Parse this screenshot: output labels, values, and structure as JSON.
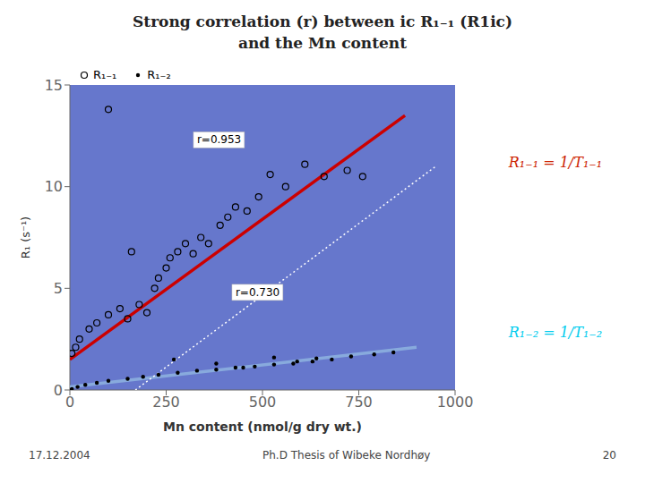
{
  "chart_data": {
    "type": "scatter",
    "title": "Strong correlation (r) between ic R₁₋₁ (R1ic)",
    "subtitle": "and the Mn content",
    "xlabel": "Mn content (nmol/g dry wt.)",
    "ylabel": "R₁ (s⁻¹)",
    "series": [
      {
        "name": "R₁₋₁",
        "type": "scatter",
        "color": "#000000",
        "marker": "open_circle",
        "x": [
          5,
          15,
          25,
          50,
          70,
          100,
          130,
          150,
          160,
          180,
          200,
          220,
          230,
          250,
          260,
          280,
          300,
          320,
          340,
          360,
          390,
          410,
          430,
          460,
          490,
          520,
          560,
          610,
          660,
          720,
          760,
          100
        ],
        "values": [
          1.8,
          2.1,
          2.5,
          3.0,
          3.3,
          3.7,
          4.0,
          3.5,
          6.8,
          4.2,
          3.8,
          5.0,
          5.5,
          6.0,
          6.5,
          6.8,
          7.2,
          6.7,
          7.5,
          7.2,
          8.1,
          8.5,
          9.0,
          8.8,
          9.5,
          10.6,
          10.0,
          11.1,
          10.5,
          10.8,
          10.5,
          13.8
        ]
      },
      {
        "name": "R₁₋₂",
        "type": "scatter",
        "color": "#000000",
        "marker": "dot",
        "x": [
          5,
          20,
          40,
          70,
          100,
          150,
          190,
          230,
          280,
          330,
          380,
          430,
          480,
          530,
          580,
          630,
          680,
          730,
          790,
          840,
          270,
          380,
          450,
          530,
          590,
          640
        ],
        "values": [
          0.05,
          0.15,
          0.25,
          0.35,
          0.45,
          0.55,
          0.65,
          0.75,
          0.85,
          0.95,
          1.0,
          1.1,
          1.15,
          1.25,
          1.3,
          1.4,
          1.5,
          1.65,
          1.75,
          1.85,
          1.5,
          1.3,
          1.1,
          1.6,
          1.4,
          1.55
        ]
      },
      {
        "type": "line",
        "color": "#cc0000",
        "line_style": "solid",
        "x": [
          0,
          870
        ],
        "values": [
          1.5,
          13.5
        ]
      },
      {
        "type": "line",
        "color": "#88aadd",
        "line_style": "solid",
        "x": [
          0,
          900
        ],
        "values": [
          0.15,
          2.1
        ]
      },
      {
        "type": "line",
        "color": "#ffffff",
        "line_style": "dotted",
        "x": [
          170,
          950
        ],
        "values": [
          0,
          11
        ]
      }
    ],
    "xlim": [
      0,
      1000
    ],
    "ylim": [
      0,
      15
    ],
    "xticks": [
      0,
      250,
      500,
      750,
      1000
    ],
    "yticks": [
      0,
      5,
      10,
      15
    ],
    "grid": false,
    "legend": "upper left",
    "annotations": [
      {
        "text": "r=0.953",
        "x": 330,
        "y": 12.3
      },
      {
        "text": "r=0.730",
        "x": 430,
        "y": 4.8
      },
      {
        "text": "R₁₋₁ = 1/T₁₋₁",
        "color": "#cc2200"
      },
      {
        "text": "R₁₋₂ = 1/T₁₋₂",
        "color": "#00ccee"
      }
    ],
    "footer": [
      "17.12.2004",
      "Ph.D Thesis of Wibeke Nordhøy",
      "20"
    ]
  }
}
